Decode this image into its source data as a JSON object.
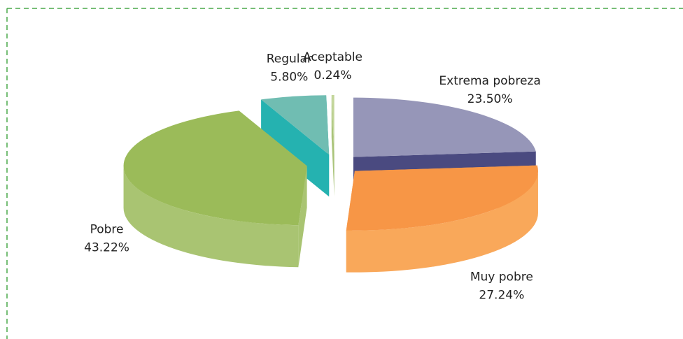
{
  "chart_data": {
    "type": "pie",
    "categories": [
      "Extrema pobreza",
      "Muy pobre",
      "Pobre",
      "Regular",
      "Aceptable"
    ],
    "values": [
      23.5,
      27.24,
      43.22,
      5.8,
      0.24
    ],
    "value_labels": [
      "23.50%",
      "27.24%",
      "43.22%",
      "5.80%",
      "0.24%"
    ],
    "colors": [
      "#9696b8",
      "#f79646",
      "#9bbb59",
      "#70bdb2",
      "#c3d69b"
    ],
    "side_colors": [
      "#4a4a80",
      "#f9a85a",
      "#a9c472",
      "#25b2b0",
      "#aac47a"
    ]
  }
}
